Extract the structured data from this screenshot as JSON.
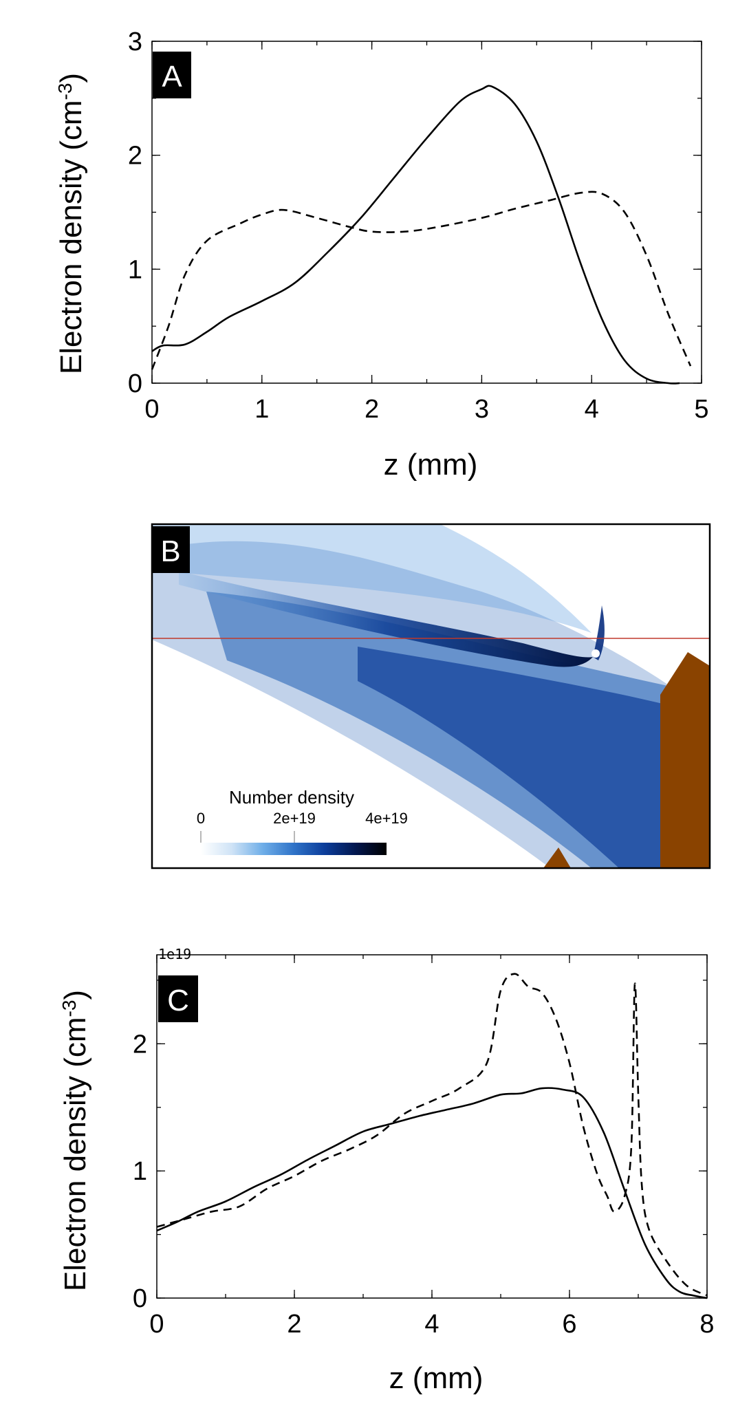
{
  "panels": {
    "a": {
      "label": "A"
    },
    "b": {
      "label": "B"
    },
    "c": {
      "label": "C"
    }
  },
  "colorbar": {
    "title": "Number density",
    "ticks": [
      "0",
      "2e+19",
      "4e+19"
    ],
    "colors": [
      "#ffffff",
      "#cfe3f6",
      "#6faee8",
      "#2f73c8",
      "#0c3d9a",
      "#02174f",
      "#000000"
    ]
  },
  "map": {
    "line_color": "#c0392b",
    "wedge_color": "#8a4300",
    "plume_color": "#1f5fb5"
  },
  "chart_data": [
    {
      "type": "line",
      "panel": "A",
      "xlabel": "z (mm)",
      "ylabel": "Electron density (cm-3)",
      "xlim": [
        0,
        5
      ],
      "ylim": [
        0,
        3
      ],
      "xticks": [
        "0",
        "1",
        "2",
        "3",
        "4",
        "5"
      ],
      "yticks": [
        "0",
        "1",
        "2",
        "3"
      ],
      "grid": false,
      "series": [
        {
          "style": "solid",
          "x": [
            0,
            0.1,
            0.3,
            0.5,
            0.7,
            1.0,
            1.3,
            1.6,
            1.9,
            2.2,
            2.5,
            2.8,
            3.0,
            3.1,
            3.3,
            3.5,
            3.7,
            3.9,
            4.1,
            4.3,
            4.5,
            4.7,
            4.8
          ],
          "y": [
            0.28,
            0.33,
            0.34,
            0.45,
            0.58,
            0.72,
            0.88,
            1.15,
            1.45,
            1.8,
            2.15,
            2.47,
            2.58,
            2.6,
            2.45,
            2.12,
            1.62,
            1.05,
            0.55,
            0.2,
            0.04,
            0.0,
            0.0
          ]
        },
        {
          "style": "dashed",
          "x": [
            0,
            0.15,
            0.3,
            0.5,
            0.8,
            1.0,
            1.2,
            1.5,
            1.8,
            2.0,
            2.3,
            2.6,
            3.0,
            3.3,
            3.6,
            3.9,
            4.1,
            4.3,
            4.5,
            4.7,
            4.9
          ],
          "y": [
            0.12,
            0.5,
            0.95,
            1.25,
            1.4,
            1.48,
            1.52,
            1.45,
            1.37,
            1.33,
            1.33,
            1.37,
            1.45,
            1.53,
            1.6,
            1.67,
            1.66,
            1.5,
            1.12,
            0.6,
            0.15
          ]
        }
      ]
    },
    {
      "type": "line",
      "panel": "C",
      "xlabel": "z (mm)",
      "ylabel": "Electron density (cm-3)",
      "xlim": [
        0,
        8
      ],
      "ylim": [
        0,
        2.7
      ],
      "xticks": [
        "0",
        "2",
        "4",
        "6",
        "8"
      ],
      "yticks": [
        "0",
        "1",
        "2"
      ],
      "offset_label": "1e19",
      "grid": false,
      "series": [
        {
          "style": "solid",
          "x": [
            0,
            0.3,
            0.6,
            1.0,
            1.4,
            1.8,
            2.2,
            2.6,
            3.0,
            3.4,
            3.8,
            4.2,
            4.6,
            5.0,
            5.3,
            5.6,
            5.9,
            6.2,
            6.5,
            6.8,
            7.1,
            7.4,
            7.6,
            7.8,
            8.0
          ],
          "y": [
            0.53,
            0.6,
            0.68,
            0.76,
            0.87,
            0.97,
            1.09,
            1.2,
            1.31,
            1.37,
            1.43,
            1.48,
            1.53,
            1.6,
            1.61,
            1.65,
            1.64,
            1.58,
            1.3,
            0.85,
            0.42,
            0.15,
            0.05,
            0.02,
            0.0
          ]
        },
        {
          "style": "dashed",
          "x": [
            0,
            0.4,
            0.8,
            1.2,
            1.6,
            2.0,
            2.4,
            2.8,
            3.2,
            3.6,
            4.0,
            4.4,
            4.8,
            5.0,
            5.2,
            5.4,
            5.6,
            5.8,
            6.0,
            6.2,
            6.4,
            6.55,
            6.65,
            6.8,
            6.9,
            6.95,
            7.0,
            7.05,
            7.15,
            7.4,
            7.7,
            8.0
          ],
          "y": [
            0.56,
            0.62,
            0.68,
            0.72,
            0.86,
            0.96,
            1.08,
            1.17,
            1.28,
            1.45,
            1.55,
            1.65,
            1.85,
            2.42,
            2.55,
            2.45,
            2.4,
            2.2,
            1.85,
            1.35,
            0.98,
            0.8,
            0.68,
            0.8,
            1.2,
            2.47,
            1.6,
            0.9,
            0.55,
            0.3,
            0.1,
            0.02
          ]
        }
      ]
    }
  ]
}
